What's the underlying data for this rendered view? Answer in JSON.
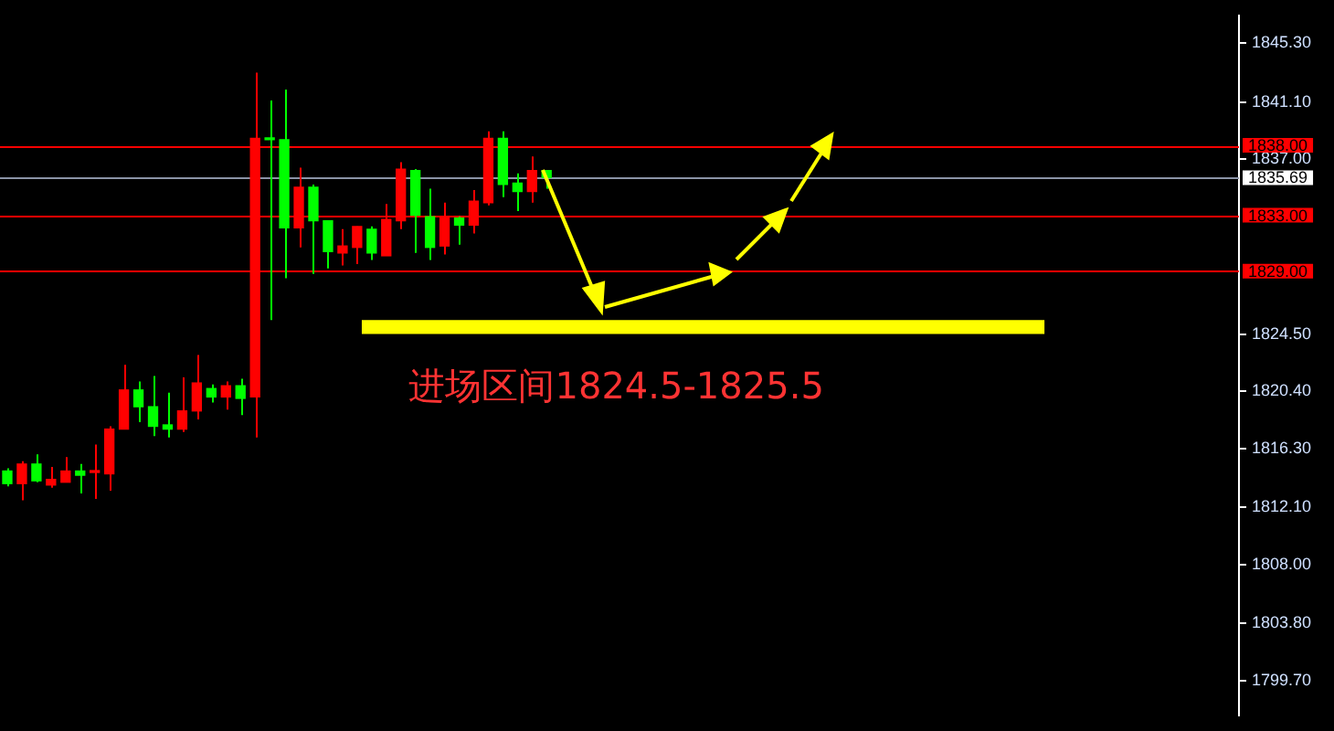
{
  "chart_data": {
    "type": "candlestick",
    "categories": [
      null,
      null,
      null,
      null,
      null,
      null,
      null,
      null,
      null,
      null,
      null,
      null,
      null,
      null,
      null,
      null,
      null,
      null,
      null,
      null,
      null,
      null,
      null,
      null,
      null,
      null,
      null,
      null,
      null,
      null,
      null,
      null,
      null,
      null,
      null,
      null,
      null,
      null,
      null,
      null,
      null,
      null,
      null,
      null,
      null,
      null,
      null,
      null,
      null,
      null,
      null,
      null,
      null,
      null,
      null,
      null,
      null,
      null,
      null,
      null,
      null,
      null,
      null,
      null,
      null,
      null,
      null,
      null,
      null,
      null,
      null,
      null,
      null,
      null,
      null,
      null,
      null,
      null,
      null,
      null,
      null,
      null,
      null,
      null,
      null
    ],
    "ohlc": [
      [
        1813.8,
        1814.9,
        1813.6,
        1814.7
      ],
      [
        1815.2,
        1815.4,
        1812.6,
        1813.8
      ],
      [
        1814.0,
        1815.9,
        1813.9,
        1815.2
      ],
      [
        1814.1,
        1815.0,
        1813.5,
        1813.7
      ],
      [
        1814.7,
        1815.7,
        1813.9,
        1813.9
      ],
      [
        1814.4,
        1815.2,
        1813.1,
        1814.7
      ],
      [
        1814.6,
        1816.6,
        1812.7,
        1814.6
      ],
      [
        1817.7,
        1817.9,
        1813.3,
        1814.5
      ],
      [
        1820.5,
        1822.3,
        1817.7,
        1817.7
      ],
      [
        1819.3,
        1821.1,
        1818.2,
        1820.5
      ],
      [
        1817.9,
        1821.5,
        1817.2,
        1819.3
      ],
      [
        1817.7,
        1820.3,
        1817.1,
        1818.0
      ],
      [
        1819.0,
        1821.4,
        1817.5,
        1817.7
      ],
      [
        1821.0,
        1823.0,
        1818.4,
        1819.0
      ],
      [
        1820.0,
        1820.9,
        1819.6,
        1820.6
      ],
      [
        1820.8,
        1821.1,
        1819.1,
        1820.0
      ],
      [
        1819.9,
        1821.3,
        1818.7,
        1820.8
      ],
      [
        1838.5,
        1843.2,
        1817.1,
        1820.0
      ],
      [
        1838.4,
        1841.2,
        1825.5,
        1838.5
      ],
      [
        1832.1,
        1842.0,
        1828.5,
        1838.4
      ],
      [
        1835.0,
        1836.4,
        1830.7,
        1832.1
      ],
      [
        1832.6,
        1835.2,
        1828.8,
        1835.0
      ],
      [
        1830.4,
        1832.6,
        1829.2,
        1832.6
      ],
      [
        1830.8,
        1832.0,
        1829.4,
        1830.3
      ],
      [
        1832.2,
        1832.2,
        1829.5,
        1830.7
      ],
      [
        1830.3,
        1832.2,
        1829.8,
        1832.0
      ],
      [
        1832.7,
        1833.8,
        1830.1,
        1830.1
      ],
      [
        1836.3,
        1836.8,
        1832.0,
        1832.6
      ],
      [
        1833.0,
        1836.3,
        1830.3,
        1836.2
      ],
      [
        1830.7,
        1834.9,
        1829.8,
        1832.9
      ],
      [
        1832.8,
        1833.9,
        1830.2,
        1830.8
      ],
      [
        1832.3,
        1832.9,
        1830.9,
        1832.8
      ],
      [
        1834.0,
        1834.8,
        1831.7,
        1832.3
      ],
      [
        1838.5,
        1839.0,
        1833.7,
        1833.9
      ],
      [
        1835.2,
        1839.0,
        1834.3,
        1838.5
      ],
      [
        1834.7,
        1836.0,
        1833.3,
        1835.3
      ],
      [
        1836.2,
        1837.2,
        1833.9,
        1834.7
      ],
      [
        1835.7,
        1836.2,
        1834.9,
        1836.2
      ],
      null,
      null,
      null,
      null,
      null,
      null,
      null,
      null,
      null,
      null,
      null,
      null,
      null,
      null,
      null,
      null,
      null,
      null,
      null,
      null,
      null,
      null,
      null,
      null,
      null,
      null,
      null,
      null,
      null,
      null,
      null,
      null,
      null,
      null,
      null,
      null,
      null,
      null,
      null,
      null,
      null,
      null,
      null,
      null,
      null,
      null,
      null
    ],
    "colors": [
      "#00ff00",
      "#ff0000",
      "#00ff00",
      "#ff0000",
      "#ff0000",
      "#00ff00",
      "#ff0000",
      "#ff0000",
      "#ff0000",
      "#00ff00",
      "#00ff00",
      "#00ff00",
      "#ff0000",
      "#ff0000",
      "#00ff00",
      "#ff0000",
      "#00ff00",
      "#ff0000",
      "#00ff00",
      "#00ff00",
      "#ff0000",
      "#00ff00",
      "#00ff00",
      "#ff0000",
      "#ff0000",
      "#00ff00",
      "#ff0000",
      "#ff0000",
      "#00ff00",
      "#00ff00",
      "#ff0000",
      "#00ff00",
      "#ff0000",
      "#ff0000",
      "#00ff00",
      "#00ff00",
      "#ff0000",
      "#00ff00",
      null,
      null,
      null,
      null,
      null,
      null,
      null,
      null,
      null,
      null,
      null,
      null,
      null,
      null,
      null,
      null,
      null,
      null,
      null,
      null,
      null,
      null,
      null,
      null,
      null,
      null,
      null,
      null,
      null,
      null,
      null,
      null,
      null,
      null,
      null,
      null,
      null,
      null,
      null,
      null,
      null,
      null,
      null,
      null,
      null,
      null,
      null
    ],
    "ylim": [
      1797.2,
      1847.3
    ],
    "yticks": [
      {
        "value": 1845.3,
        "label": "1845.30"
      },
      {
        "value": 1841.1,
        "label": "1841.10"
      },
      {
        "value": 1837,
        "label": "1837.00"
      },
      {
        "value": 1824.5,
        "label": "1824.50"
      },
      {
        "value": 1820.4,
        "label": "1820.40"
      },
      {
        "value": 1816.3,
        "label": "1816.30"
      },
      {
        "value": 1812.1,
        "label": "1812.10"
      },
      {
        "value": 1808,
        "label": "1808.00"
      },
      {
        "value": 1803.8,
        "label": "1803.80"
      },
      {
        "value": 1799.7,
        "label": "1799.70"
      }
    ],
    "tick_labels": "y",
    "ref_lines": [
      {
        "axis": "y",
        "value": 1838,
        "label": "1838.00",
        "color": "#ff0000"
      },
      {
        "axis": "y",
        "value": 1835.69,
        "label": "1835.69",
        "color": "#8a93a6"
      },
      {
        "axis": "y",
        "value": 1833,
        "label": "1833.00",
        "color": "#ff0000"
      },
      {
        "axis": "y",
        "value": 1829,
        "label": "1829.00",
        "color": "#ff0000"
      }
    ],
    "bands": [
      {
        "axis": "y",
        "from": 1824.5,
        "to": 1825.5,
        "color": "#ffff00"
      }
    ],
    "annotations": [
      "进场区间1824.5-1825.5"
    ]
  }
}
